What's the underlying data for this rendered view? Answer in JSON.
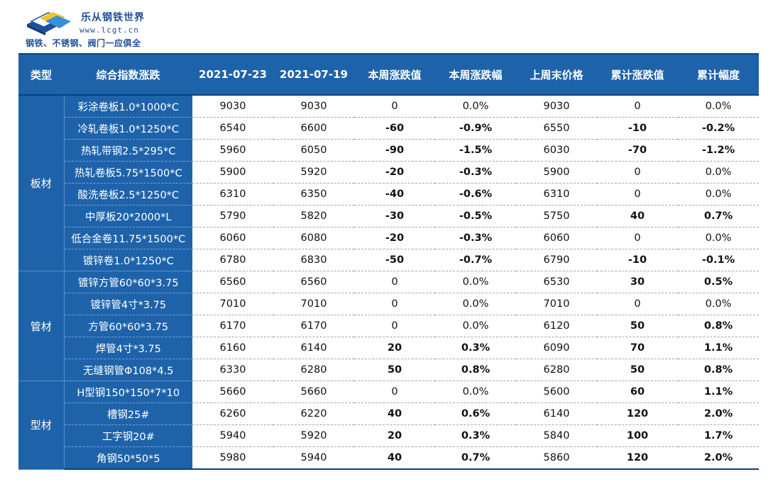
{
  "logo": {
    "name": "乐从钢铁世界",
    "url": "www.lcgt.cn",
    "tagline": "钢铁、不锈钢、阀门一应俱全"
  },
  "colors": {
    "header_bg": "#1e63aa",
    "up": "#e3141b",
    "down": "#1aa33b"
  },
  "table": {
    "headers": [
      "类型",
      "综合指数涨跌",
      "2021-07-23",
      "2021-07-19",
      "本周涨跌值",
      "本周涨跌幅",
      "上周末价格",
      "累计涨跌值",
      "累计幅度"
    ],
    "groups": [
      {
        "category": "板材",
        "rows": [
          [
            "彩涂卷板1.0*1000*C",
            "9030",
            "9030",
            "0",
            "0.0%",
            "9030",
            "0",
            "0.0%"
          ],
          [
            "冷轧卷板1.0*1250*C",
            "6540",
            "6600",
            "-60",
            "-0.9%",
            "6550",
            "-10",
            "-0.2%"
          ],
          [
            "热轧带钢2.5*295*C",
            "5960",
            "6050",
            "-90",
            "-1.5%",
            "6030",
            "-70",
            "-1.2%"
          ],
          [
            "热轧卷板5.75*1500*C",
            "5900",
            "5920",
            "-20",
            "-0.3%",
            "5900",
            "0",
            "0.0%"
          ],
          [
            "酸洗卷板2.5*1250*C",
            "6310",
            "6350",
            "-40",
            "-0.6%",
            "6310",
            "0",
            "0.0%"
          ],
          [
            "中厚板20*2000*L",
            "5790",
            "5820",
            "-30",
            "-0.5%",
            "5750",
            "40",
            "0.7%"
          ],
          [
            "低合金卷11.75*1500*C",
            "6060",
            "6080",
            "-20",
            "-0.3%",
            "6060",
            "0",
            "0.0%"
          ],
          [
            "镀锌卷1.0*1250*C",
            "6780",
            "6830",
            "-50",
            "-0.7%",
            "6790",
            "-10",
            "-0.1%"
          ]
        ]
      },
      {
        "category": "管材",
        "rows": [
          [
            "镀锌方管60*60*3.75",
            "6560",
            "6560",
            "0",
            "0.0%",
            "6530",
            "30",
            "0.5%"
          ],
          [
            "镀锌管4寸*3.75",
            "7010",
            "7010",
            "0",
            "0.0%",
            "7010",
            "0",
            "0.0%"
          ],
          [
            "方管60*60*3.75",
            "6170",
            "6170",
            "0",
            "0.0%",
            "6120",
            "50",
            "0.8%"
          ],
          [
            "焊管4寸*3.75",
            "6160",
            "6140",
            "20",
            "0.3%",
            "6090",
            "70",
            "1.1%"
          ],
          [
            "无缝钢管Φ108*4.5",
            "6330",
            "6280",
            "50",
            "0.8%",
            "6280",
            "50",
            "0.8%"
          ]
        ]
      },
      {
        "category": "型材",
        "rows": [
          [
            "H型钢150*150*7*10",
            "5660",
            "5660",
            "0",
            "0.0%",
            "5600",
            "60",
            "1.1%"
          ],
          [
            "槽钢25#",
            "6260",
            "6220",
            "40",
            "0.6%",
            "6140",
            "120",
            "2.0%"
          ],
          [
            "工字钢20#",
            "5940",
            "5920",
            "20",
            "0.3%",
            "5840",
            "100",
            "1.7%"
          ],
          [
            "角钢50*50*5",
            "5980",
            "5940",
            "40",
            "0.7%",
            "5860",
            "120",
            "2.0%"
          ]
        ]
      }
    ]
  }
}
